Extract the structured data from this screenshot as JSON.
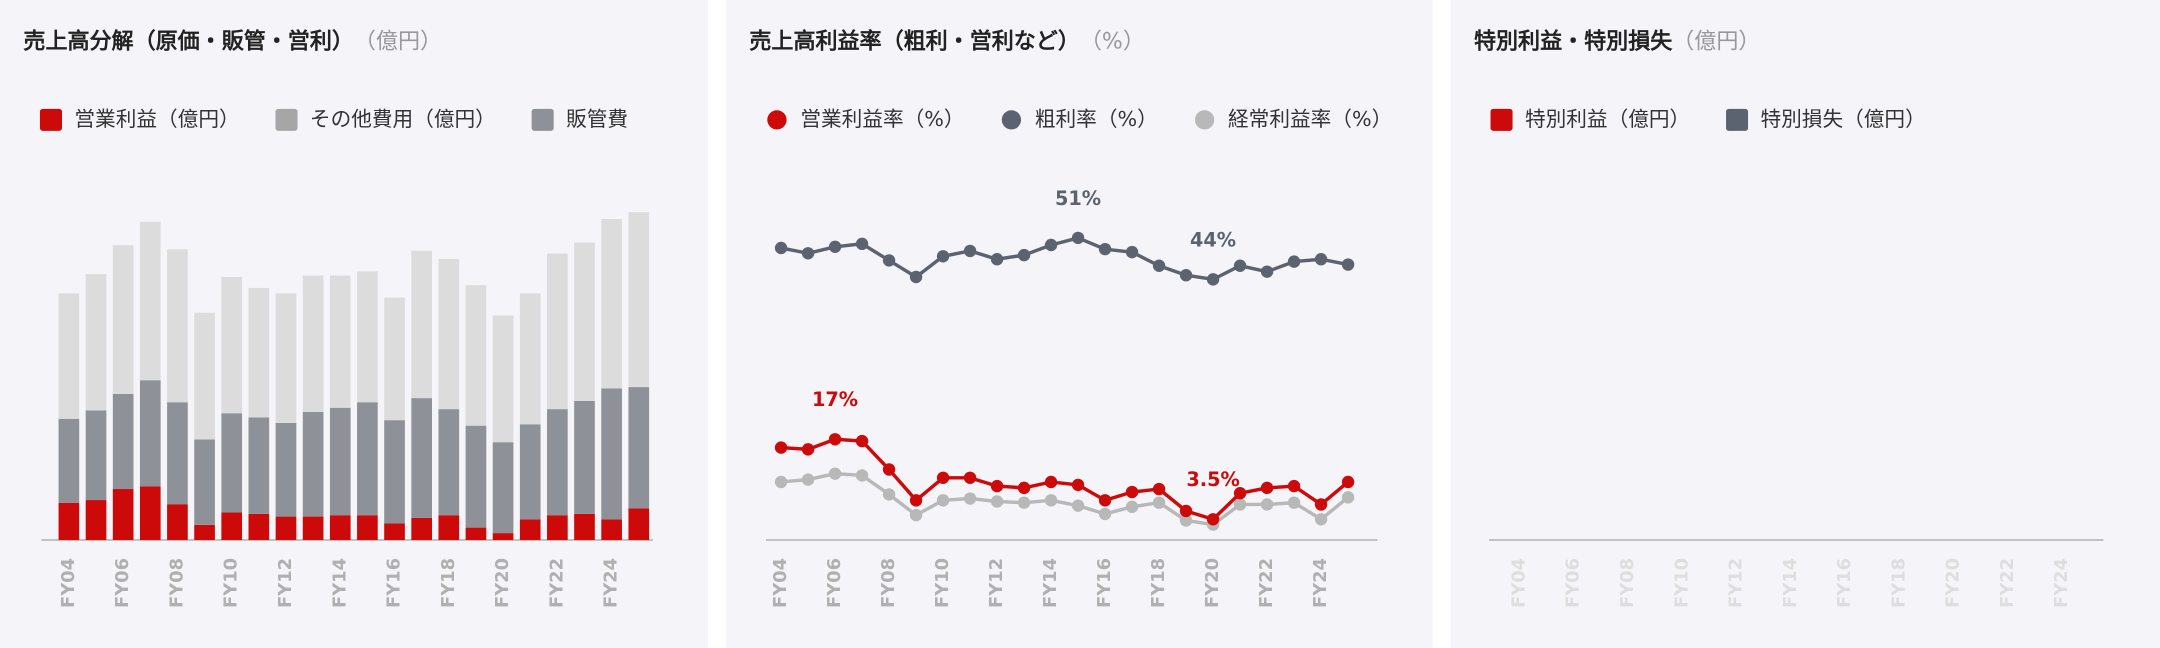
{
  "chart_data": [
    {
      "type": "bar",
      "title": "売上高分解（原価・販管・営利）",
      "subtitle": "（億円）",
      "categories": [
        "FY04",
        null,
        "FY06",
        null,
        "FY08",
        null,
        "FY10",
        null,
        "FY12",
        null,
        "FY14",
        null,
        "FY16",
        null,
        "FY18",
        null,
        "FY20",
        null,
        "FY22",
        null,
        "FY24",
        null
      ],
      "series": [
        {
          "name": "営業利益（億円）",
          "color": "#cc0a0a",
          "values": [
            27,
            29,
            37,
            39,
            26,
            11,
            20,
            19,
            17,
            17,
            18,
            18,
            12,
            16,
            18,
            9,
            5,
            15,
            18,
            19,
            15,
            23
          ]
        },
        {
          "name": "その他費用（億円）",
          "color": "#a6a6a6",
          "values": [
            null,
            null,
            null,
            null,
            null,
            null,
            null,
            null,
            null,
            null,
            null,
            null,
            null,
            null,
            null,
            null,
            null,
            null,
            null,
            null,
            null,
            null
          ]
        },
        {
          "name": "販管費",
          "color": "#8e9198",
          "values": [
            61,
            65,
            69,
            77,
            74,
            62,
            72,
            70,
            68,
            76,
            78,
            82,
            75,
            87,
            77,
            74,
            66,
            69,
            77,
            82,
            95,
            88
          ]
        },
        {
          "color": "#dcdcdc",
          "values": [
            91,
            99,
            108,
            115,
            111,
            92,
            99,
            94,
            94,
            99,
            96,
            95,
            89,
            107,
            109,
            102,
            92,
            95,
            113,
            115,
            123,
            127
          ]
        }
      ],
      "ylim": [
        0,
        258
      ]
    },
    {
      "type": "line",
      "title": "売上高利益率（粗利・営利など）",
      "subtitle": "（%）",
      "categories": [
        "FY04",
        null,
        "FY06",
        null,
        "FY08",
        null,
        "FY10",
        null,
        "FY12",
        null,
        "FY14",
        null,
        "FY16",
        null,
        "FY18",
        null,
        "FY20",
        null,
        "FY22",
        null,
        "FY24",
        null
      ],
      "series": [
        {
          "name": "営業利益率（%）",
          "color": "#cc0a0a",
          "values": [
            15.6,
            15.3,
            17,
            16.7,
            11.9,
            6.7,
            10.5,
            10.5,
            9.1,
            8.8,
            9.8,
            9.3,
            6.7,
            8.1,
            8.6,
            4.9,
            3.5,
            7.9,
            8.8,
            9.1,
            6.0,
            9.8
          ],
          "value_labels": [
            null,
            null,
            "17%",
            null,
            null,
            null,
            null,
            null,
            null,
            null,
            null,
            null,
            null,
            null,
            null,
            null,
            "3.5%",
            null,
            null,
            null,
            null,
            null
          ]
        },
        {
          "name": "粗利率（%）",
          "color": "#5c6370",
          "values": [
            49.3,
            48.4,
            49.5,
            50.0,
            47.2,
            44.4,
            47.9,
            48.8,
            47.4,
            48.1,
            49.8,
            51,
            49.1,
            48.6,
            46.3,
            44.7,
            44,
            46.3,
            45.3,
            47.0,
            47.4,
            46.5
          ],
          "value_labels": [
            null,
            null,
            null,
            null,
            null,
            null,
            null,
            null,
            null,
            null,
            null,
            "51%",
            null,
            null,
            null,
            null,
            "44%",
            null,
            null,
            null,
            null,
            null
          ]
        },
        {
          "name": "経常利益率（%）",
          "color": "#b8b8b8",
          "values": [
            9.8,
            10.2,
            11.2,
            10.9,
            7.7,
            4.2,
            6.7,
            7.0,
            6.5,
            6.3,
            6.7,
            5.8,
            4.4,
            5.6,
            6.3,
            3.3,
            2.6,
            6.0,
            6.0,
            6.3,
            3.5,
            7.2
          ]
        }
      ],
      "ylim": [
        0,
        60
      ]
    },
    {
      "type": "bar",
      "title": "特別利益・特別損失",
      "subtitle": "（億円）",
      "categories": [
        "FY04",
        null,
        "FY06",
        null,
        "FY08",
        null,
        "FY10",
        null,
        "FY12",
        null,
        "FY14",
        null,
        "FY16",
        null,
        "FY18",
        null,
        "FY20",
        null,
        "FY22",
        null,
        "FY24",
        null
      ],
      "series": [
        {
          "name": "特別利益（億円）",
          "color": "#cc0a0a",
          "values": [
            null,
            null,
            null,
            null,
            null,
            null,
            null,
            null,
            null,
            null,
            null,
            null,
            null,
            null,
            null,
            null,
            null,
            null,
            null,
            null,
            null,
            null
          ]
        },
        {
          "name": "特別損失（億円）",
          "color": "#5c6370",
          "values": [
            null,
            null,
            null,
            null,
            null,
            null,
            null,
            null,
            null,
            null,
            null,
            null,
            null,
            null,
            null,
            null,
            null,
            null,
            null,
            null,
            null,
            null
          ]
        }
      ],
      "ylim": [
        0,
        258
      ]
    }
  ]
}
